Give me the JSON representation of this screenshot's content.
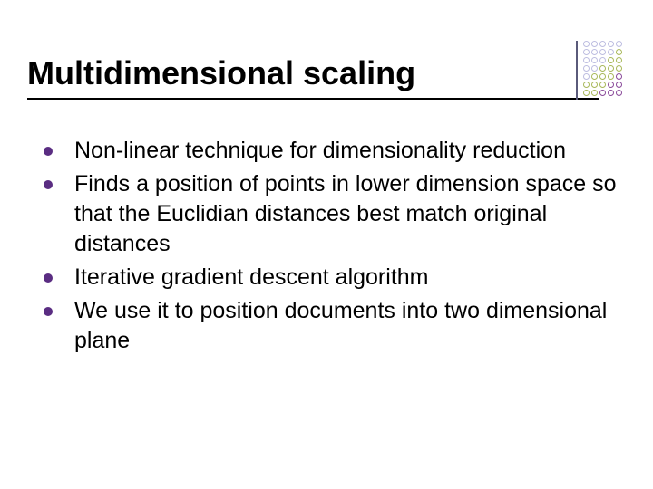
{
  "title": "Multidimensional scaling",
  "title_fontsize": 36,
  "title_color": "#000000",
  "rule_color": "#000000",
  "background_color": "#ffffff",
  "bullet_color": "#5a2d82",
  "body_fontsize": 25,
  "body_color": "#000000",
  "bullets": [
    "Non-linear technique for dimensionality reduction",
    "Finds a position of points in lower dimension space so that the Euclidian distances best match original distances",
    "Iterative gradient descent algorithm",
    "We use it to position documents into two dimensional plane"
  ],
  "decoration": {
    "line_color": "#5a5a7a",
    "rows": 7,
    "cols": 5,
    "cells": [
      [
        "#bdbde0",
        "#bdbde0",
        "#bdbde0",
        "#bdbde0",
        "#bdbde0"
      ],
      [
        "#bdbde0",
        "#bdbde0",
        "#bdbde0",
        "#bdbde0",
        "#a8b85a"
      ],
      [
        "#bdbde0",
        "#bdbde0",
        "#bdbde0",
        "#a8b85a",
        "#a8b85a"
      ],
      [
        "#bdbde0",
        "#bdbde0",
        "#a8b85a",
        "#a8b85a",
        "#a8b85a"
      ],
      [
        "#bdbde0",
        "#a8b85a",
        "#a8b85a",
        "#a8b85a",
        "#8a4a9a"
      ],
      [
        "#a8b85a",
        "#a8b85a",
        "#a8b85a",
        "#8a4a9a",
        "#8a4a9a"
      ],
      [
        "#a8b85a",
        "#a8b85a",
        "#8a4a9a",
        "#8a4a9a",
        "#8a4a9a"
      ]
    ]
  }
}
